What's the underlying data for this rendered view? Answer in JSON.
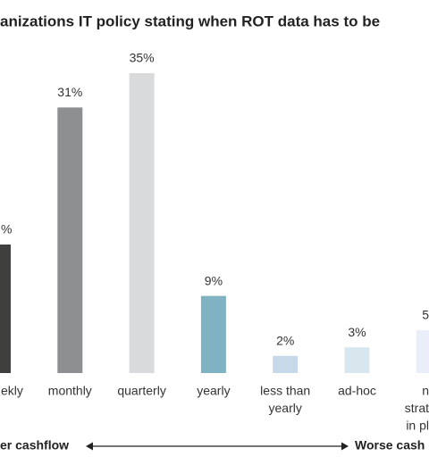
{
  "chart_data": {
    "type": "bar",
    "title": "anizations IT policy stating when ROT data has to be",
    "categories": [
      [
        "ekly"
      ],
      [
        "monthly"
      ],
      [
        "quarterly"
      ],
      [
        "yearly"
      ],
      [
        "less than",
        "yearly"
      ],
      [
        "ad-hoc"
      ],
      [
        "n",
        "strat",
        "in pl"
      ]
    ],
    "values": [
      15,
      31,
      35,
      9,
      2,
      3,
      5
    ],
    "value_labels": [
      "%",
      "31%",
      "35%",
      "9%",
      "2%",
      "3%",
      "5"
    ],
    "colors": [
      "#3f3f3d",
      "#8e8f90",
      "#d9dadb",
      "#7fb3c3",
      "#c7d8ea",
      "#d8e6ef",
      "#e9eef8"
    ],
    "ylim": [
      0,
      40
    ],
    "footer": {
      "left": "er cashflow",
      "right": "Worse cash"
    }
  }
}
